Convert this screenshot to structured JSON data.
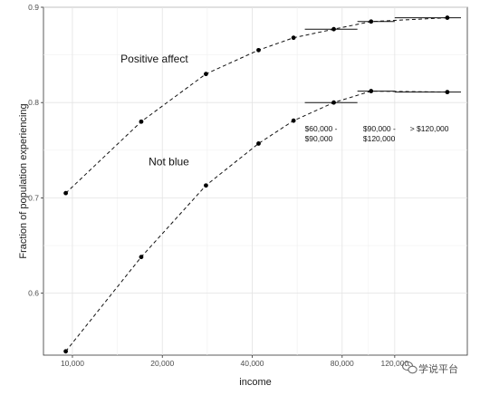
{
  "chart_data": {
    "type": "line",
    "xlabel": "income",
    "ylabel": "Fraction of population experiencing",
    "x_scale": "log",
    "xlim": [
      8000,
      210000
    ],
    "ylim": [
      0.535,
      0.9
    ],
    "grid": true,
    "x_ticks": [
      {
        "value": 10000,
        "label": "10,000"
      },
      {
        "value": 20000,
        "label": "20,000"
      },
      {
        "value": 40000,
        "label": "40,000"
      },
      {
        "value": 80000,
        "label": "80,000"
      },
      {
        "value": 120000,
        "label": "120,000"
      }
    ],
    "y_ticks": [
      {
        "value": 0.6,
        "label": "0.6"
      },
      {
        "value": 0.7,
        "label": "0.7"
      },
      {
        "value": 0.8,
        "label": "0.8"
      },
      {
        "value": 0.9,
        "label": "0.9"
      }
    ],
    "series": [
      {
        "name": "Positive affect",
        "x": [
          9500,
          17000,
          28000,
          42000,
          55000,
          75000,
          100000,
          180000
        ],
        "y": [
          0.705,
          0.78,
          0.83,
          0.855,
          0.868,
          0.877,
          0.885,
          0.889
        ]
      },
      {
        "name": "Not blue",
        "x": [
          9500,
          17000,
          28000,
          42000,
          55000,
          75000,
          100000,
          180000
        ],
        "y": [
          0.539,
          0.638,
          0.713,
          0.757,
          0.781,
          0.8,
          0.812,
          0.811
        ]
      }
    ],
    "bin_segments": [
      {
        "series": 0,
        "x0": 60000,
        "x1": 90000,
        "y": 0.877
      },
      {
        "series": 0,
        "x0": 90000,
        "x1": 120000,
        "y": 0.885
      },
      {
        "series": 0,
        "x0": 120000,
        "x1": 200000,
        "y": 0.889
      },
      {
        "series": 1,
        "x0": 60000,
        "x1": 90000,
        "y": 0.8
      },
      {
        "series": 1,
        "x0": 90000,
        "x1": 120000,
        "y": 0.812
      },
      {
        "series": 1,
        "x0": 120000,
        "x1": 200000,
        "y": 0.811
      }
    ],
    "annotations": [
      {
        "lines": [
          "$60,000 -",
          "$90,000"
        ],
        "x": 60000,
        "y": 0.77
      },
      {
        "lines": [
          "$90,000 -",
          "$120,000"
        ],
        "x": 94000,
        "y": 0.77
      },
      {
        "lines": [
          "> $120,000"
        ],
        "x": 135000,
        "y": 0.77
      }
    ],
    "series_labels": [
      {
        "text": "Positive affect",
        "x": 14500,
        "y": 0.842
      },
      {
        "text": "Not blue",
        "x": 18000,
        "y": 0.734
      }
    ]
  },
  "watermark": {
    "text": "学说平台",
    "icon": "wechat-icon"
  }
}
